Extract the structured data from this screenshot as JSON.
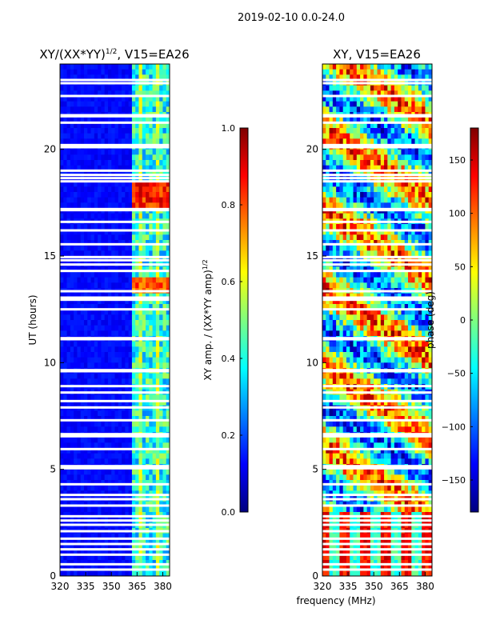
{
  "figure_title": "2019-02-10 0.0-24.0",
  "colors": {
    "jet": [
      "#00007f",
      "#0000ff",
      "#007fff",
      "#00ffff",
      "#7fff7f",
      "#ffff00",
      "#ff7f00",
      "#ff0000",
      "#7f0000"
    ],
    "background_waterfall": "#0000a8",
    "flag_gap": "#ffffff"
  },
  "chart_data": [
    {
      "type": "heatmap",
      "id": "amp",
      "title_main": "XY/(XX*YY)",
      "title_exp": "1/2",
      "title_tail": ", V15=EA26",
      "xlabel": "",
      "ylabel": "UT (hours)",
      "xlim": [
        320,
        384
      ],
      "ylim": [
        0,
        24
      ],
      "xticks": [
        320,
        335,
        350,
        365,
        380
      ],
      "yticks": [
        0,
        5,
        10,
        15,
        20
      ],
      "colorbar": {
        "label_main": "XY amp. / (XX*YY amp)",
        "label_exp": "1/2",
        "range": [
          0.0,
          1.0
        ],
        "ticks": [
          "0.0",
          "0.2",
          "0.4",
          "0.6",
          "0.8",
          "1.0"
        ],
        "tick_values": [
          0.0,
          0.2,
          0.4,
          0.6,
          0.8,
          1.0
        ]
      },
      "flagged_hours": [
        0.3,
        0.55,
        1.0,
        1.25,
        1.5,
        1.75,
        2.1,
        2.4,
        2.6,
        2.8,
        3.3,
        3.6,
        3.8,
        4.3,
        5.05,
        5.15,
        5.95,
        6.55,
        6.65,
        7.3,
        7.9,
        8.2,
        8.6,
        8.9,
        9.6,
        9.65,
        11.1,
        11.15,
        12.5,
        12.95,
        13.05,
        13.35,
        14.3,
        14.6,
        14.8,
        14.95,
        15.55,
        16.2,
        16.6,
        17.15,
        17.2,
        18.5,
        18.65,
        18.8,
        19.0,
        20.1,
        20.2,
        21.25,
        21.55,
        21.6,
        22.5,
        23.1,
        23.25
      ]
    },
    {
      "type": "heatmap",
      "id": "phase",
      "title_main": "XY, V15=EA26",
      "xlabel": "frequency (MHz)",
      "ylabel": "",
      "xlim": [
        320,
        384
      ],
      "ylim": [
        0,
        24
      ],
      "xticks": [
        320,
        335,
        350,
        365,
        380
      ],
      "yticks": [
        0,
        5,
        10,
        15,
        20
      ],
      "colorbar": {
        "label_main": "phase (deg)",
        "range": [
          -180,
          180
        ],
        "ticks": [
          "−150",
          "−100",
          "−50",
          "0",
          "50",
          "100",
          "150"
        ],
        "tick_values": [
          -150,
          -100,
          -50,
          0,
          50,
          100,
          150
        ]
      },
      "flagged_hours": [
        0.3,
        0.55,
        1.0,
        1.25,
        1.5,
        1.75,
        2.1,
        2.4,
        2.6,
        2.8,
        3.3,
        3.6,
        3.8,
        4.3,
        5.05,
        5.15,
        5.95,
        6.55,
        6.65,
        7.3,
        7.9,
        8.2,
        8.6,
        8.9,
        9.6,
        9.65,
        11.1,
        11.15,
        12.5,
        12.95,
        13.05,
        13.35,
        14.3,
        14.6,
        14.8,
        14.95,
        15.55,
        16.2,
        16.6,
        17.15,
        17.2,
        18.5,
        18.65,
        18.8,
        19.0,
        20.1,
        20.2,
        21.25,
        21.55,
        21.6,
        22.5,
        23.1,
        23.25
      ]
    }
  ]
}
